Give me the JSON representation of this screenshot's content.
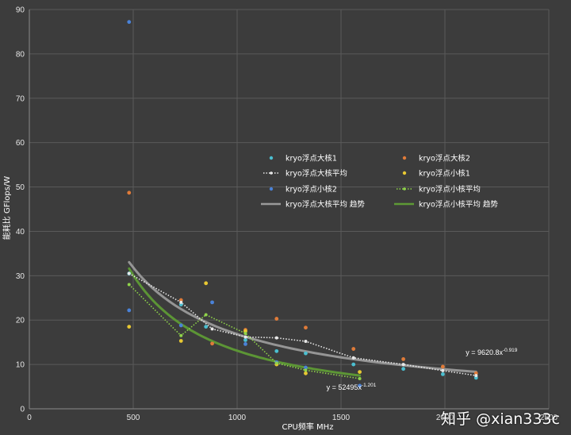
{
  "watermark": "知乎 @xian333c",
  "chart_data": {
    "type": "scatter",
    "xlabel": "CPU频率 MHz",
    "ylabel": "能耗比 GFlops/W",
    "xlim": [
      0,
      2500
    ],
    "ylim": [
      0,
      90
    ],
    "xticks": [
      0,
      500,
      1000,
      1500,
      2000,
      2500
    ],
    "yticks": [
      0,
      10,
      20,
      30,
      40,
      50,
      60,
      70,
      80,
      90
    ],
    "grid": true,
    "legend_position": "center-right",
    "series": [
      {
        "name": "kryo浮点大核1",
        "kind": "points",
        "color": "#4bbfd0",
        "x": [
          480,
          730,
          850,
          1040,
          1190,
          1330,
          1560,
          1800,
          1990,
          2150
        ],
        "y": [
          30.5,
          23.5,
          18.5,
          15.5,
          13,
          12.5,
          10,
          9,
          7.8,
          7
        ]
      },
      {
        "name": "kryo浮点大核2",
        "kind": "points",
        "color": "#e07b39",
        "x": [
          480,
          730,
          880,
          1040,
          1190,
          1330,
          1560,
          1800,
          1990,
          2150
        ],
        "y": [
          48.7,
          24.5,
          14.7,
          17.8,
          20.3,
          18.3,
          13.5,
          11.2,
          9.5,
          8
        ]
      },
      {
        "name": "kryo浮点大核平均",
        "kind": "dotted-line",
        "color": "#e8e8e8",
        "x": [
          480,
          730,
          880,
          1040,
          1190,
          1330,
          1560,
          1800,
          1990,
          2150
        ],
        "y": [
          30.5,
          24,
          18,
          16.2,
          16,
          15.2,
          11.5,
          10,
          8.6,
          7.5
        ]
      },
      {
        "name": "kryo浮点小核1",
        "kind": "points",
        "color": "#e8c832",
        "x": [
          480,
          730,
          850,
          1040,
          1190,
          1330,
          1590
        ],
        "y": [
          18.5,
          15.3,
          28.3,
          17.5,
          10,
          8,
          8.3
        ]
      },
      {
        "name": "kryo浮点小核2",
        "kind": "points",
        "color": "#4a82d8",
        "x": [
          480,
          480,
          730,
          880,
          1040,
          1190,
          1330,
          1590
        ],
        "y": [
          87.2,
          22.2,
          18.8,
          24,
          14.6,
          10.5,
          9.3,
          5.2
        ]
      },
      {
        "name": "kryo浮点小核平均",
        "kind": "dotted-line",
        "color": "#8fd44a",
        "x": [
          480,
          730,
          850,
          1040,
          1190,
          1330,
          1590
        ],
        "y": [
          28,
          16.5,
          21.2,
          17,
          10.3,
          8.7,
          6.8
        ]
      },
      {
        "name": "kryo浮点大核平均 趋势",
        "kind": "trendline",
        "color": "#9a9a9a",
        "equation": "y = 9620.8x^-0.919",
        "coef": 9620.8,
        "exp": -0.919,
        "domain": [
          480,
          2150
        ]
      },
      {
        "name": "kryo浮点小核平均 趋势",
        "kind": "trendline",
        "color": "#5e9a35",
        "equation": "y = 52495x^-1.201",
        "coef": 52495,
        "exp": -1.201,
        "domain": [
          480,
          1590
        ]
      }
    ],
    "annotations": [
      {
        "text": "y = 9620.8x",
        "sup": "-0.919",
        "at_x": 2100,
        "at_y": 12.2
      },
      {
        "text": "y = 52495x",
        "sup": "-1.201",
        "at_x": 1430,
        "at_y": 4.3
      }
    ]
  }
}
